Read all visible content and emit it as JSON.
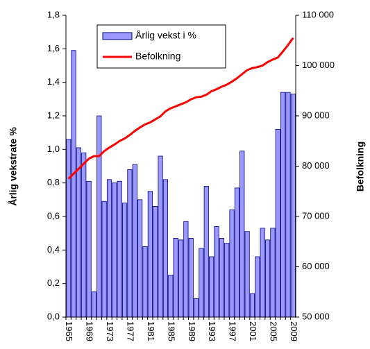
{
  "chart_data": {
    "type": "bar-line",
    "y_label": "Årlig vekstrate %",
    "y2_label": "Befolkning",
    "categories": [
      "1965",
      null,
      null,
      null,
      "1969",
      null,
      null,
      null,
      "1973",
      null,
      null,
      null,
      "1977",
      null,
      null,
      null,
      "1981",
      null,
      null,
      null,
      "1985",
      null,
      null,
      null,
      "1989",
      null,
      null,
      null,
      "1993",
      null,
      null,
      null,
      "1997",
      null,
      null,
      null,
      "2001",
      null,
      null,
      null,
      "2005",
      null,
      null,
      null,
      "2009"
    ],
    "series": [
      {
        "name": "Årlig vekst i %",
        "type": "bar",
        "color": "#9999ff",
        "edge_color": "#000080",
        "values": [
          1.06,
          1.59,
          1.01,
          0.98,
          0.81,
          0.15,
          1.2,
          0.69,
          0.82,
          0.8,
          0.81,
          0.68,
          0.88,
          0.91,
          0.7,
          0.42,
          0.75,
          0.66,
          0.96,
          0.82,
          0.25,
          0.47,
          0.46,
          0.57,
          0.47,
          0.11,
          0.41,
          0.78,
          0.36,
          0.54,
          0.47,
          0.44,
          0.64,
          0.77,
          0.99,
          0.51,
          0.14,
          0.36,
          0.53,
          0.46,
          0.53,
          1.12,
          1.34,
          1.34,
          1.33
        ]
      },
      {
        "name": "Befolkning",
        "type": "line",
        "axis": "y2",
        "color": "#ff0000",
        "values": [
          77500,
          78500,
          79500,
          80500,
          81500,
          82000,
          82000,
          83000,
          83700,
          84300,
          85000,
          85500,
          86200,
          87000,
          87700,
          88300,
          88700,
          89300,
          89900,
          90900,
          91500,
          91900,
          92300,
          92700,
          93300,
          93700,
          93800,
          94200,
          94900,
          95300,
          95800,
          96200,
          96800,
          97500,
          98300,
          99100,
          99500,
          99700,
          100000,
          100700,
          101200,
          101600,
          102800,
          104100,
          105500
        ]
      }
    ],
    "ylim": [
      0,
      1.8
    ],
    "yticks": [
      {
        "value": 0,
        "label": "0,0"
      },
      {
        "value": 0.2,
        "label": "0,2"
      },
      {
        "value": 0.4,
        "label": "0,4"
      },
      {
        "value": 0.6,
        "label": "0,6"
      },
      {
        "value": 0.8,
        "label": "0,8"
      },
      {
        "value": 1.0,
        "label": "1,0"
      },
      {
        "value": 1.2,
        "label": "1,2"
      },
      {
        "value": 1.4,
        "label": "1,4"
      },
      {
        "value": 1.6,
        "label": "1,6"
      },
      {
        "value": 1.8,
        "label": "1,8"
      }
    ],
    "y2lim": [
      50000,
      110000
    ],
    "y2ticks": [
      {
        "value": 50000,
        "label": "50 000"
      },
      {
        "value": 60000,
        "label": "60 000"
      },
      {
        "value": 70000,
        "label": "70 000"
      },
      {
        "value": 80000,
        "label": "80 000"
      },
      {
        "value": 90000,
        "label": "90 000"
      },
      {
        "value": 100000,
        "label": "100 000"
      },
      {
        "value": 110000,
        "label": "110 000"
      }
    ]
  }
}
